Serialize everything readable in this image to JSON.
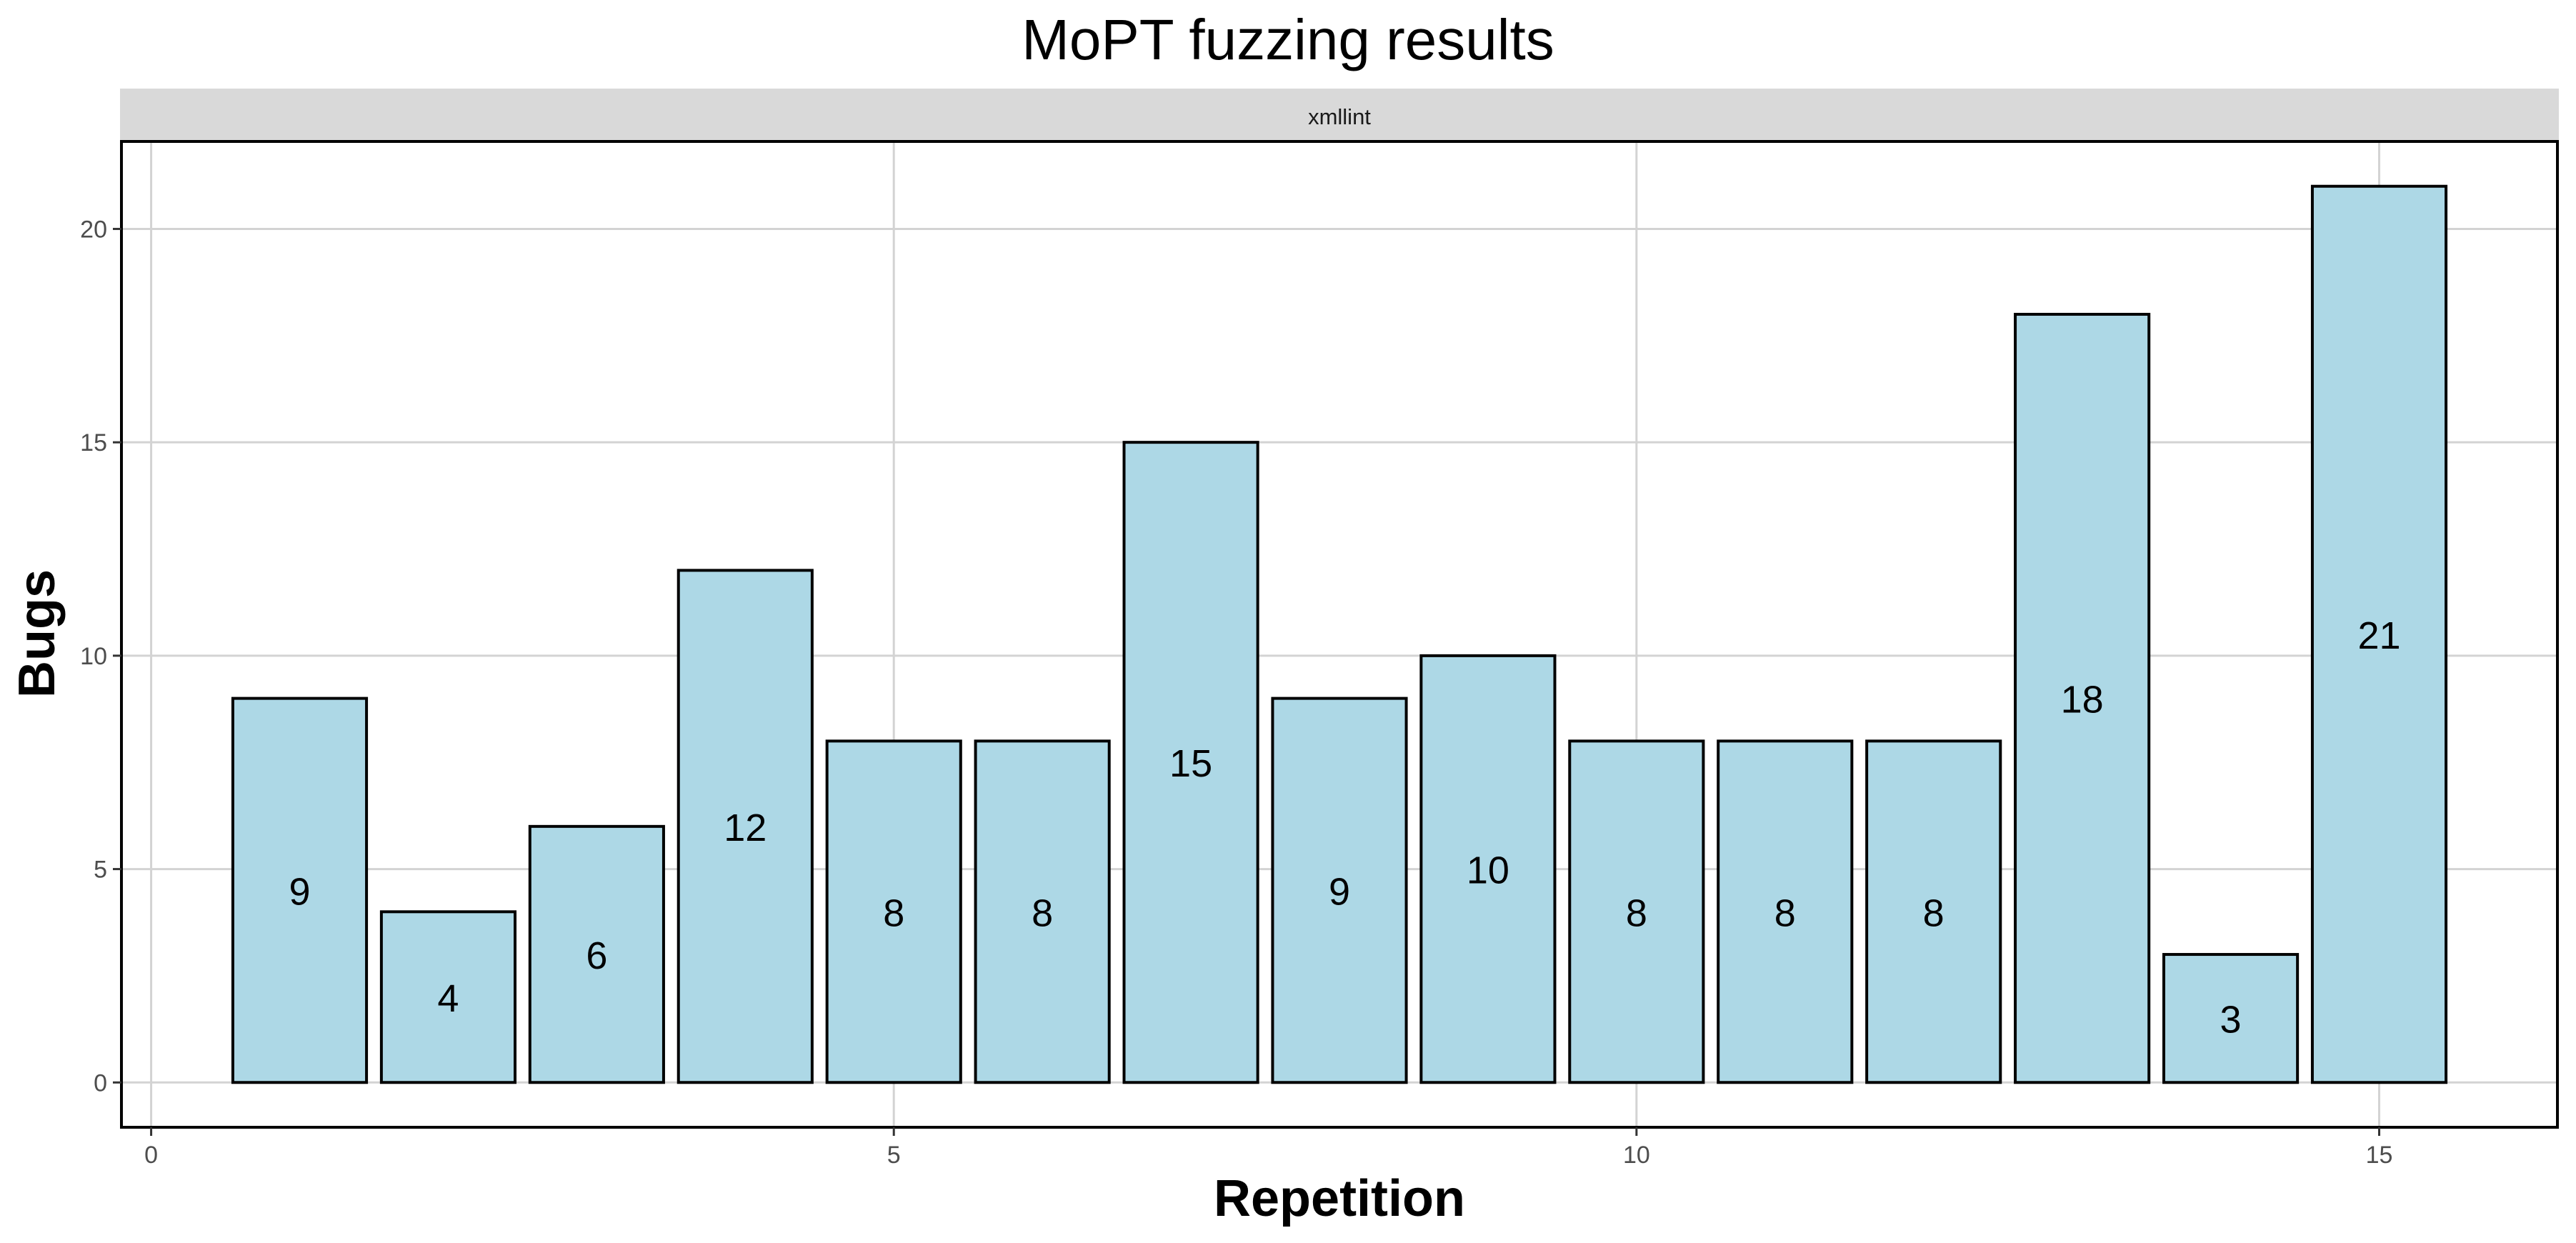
{
  "chart_data": {
    "type": "bar",
    "title": "MoPT fuzzing results",
    "facet": "xmllint",
    "xlabel": "Repetition",
    "ylabel": "Bugs",
    "x": [
      1,
      2,
      3,
      4,
      5,
      6,
      7,
      8,
      9,
      10,
      11,
      12,
      13,
      14,
      15
    ],
    "values": [
      9,
      4,
      6,
      12,
      8,
      8,
      15,
      9,
      10,
      8,
      8,
      8,
      18,
      3,
      21
    ],
    "xlim": [
      -0.2,
      16.2
    ],
    "ylim": [
      -1.05,
      22.05
    ],
    "xticks": [
      "0",
      "5",
      "10",
      "15"
    ],
    "yticks": [
      "0",
      "5",
      "10",
      "15",
      "20"
    ],
    "bar_labels": [
      "9",
      "4",
      "6",
      "12",
      "8",
      "8",
      "15",
      "9",
      "10",
      "8",
      "8",
      "8",
      "18",
      "3",
      "21"
    ],
    "grid": true,
    "bar_color": "#add8e6",
    "bar_edge_color": "#000000",
    "strip_color": "#d9d9d9"
  }
}
